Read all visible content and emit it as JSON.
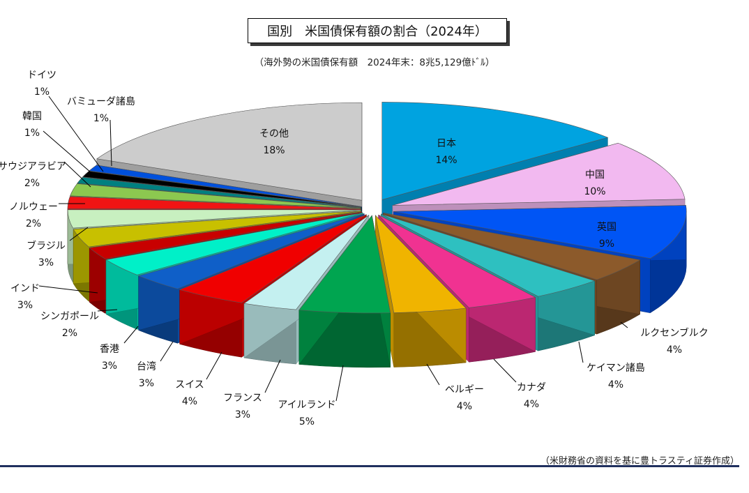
{
  "title": "国別　米国債保有額の割合（2024年）",
  "subtitle": "（海外勢の米国債保有額　2024年末：8兆5,129億ﾄﾞﾙ）",
  "source": "（米財務省の資料を基に豊トラスティ証券作成）",
  "chart_data": {
    "type": "pie",
    "unit": "%",
    "slices": [
      {
        "label": "日本",
        "value": 14,
        "display": "14%",
        "color": "#00A3E0"
      },
      {
        "label": "中国",
        "value": 10,
        "display": "10%",
        "color": "#F2B9F0"
      },
      {
        "label": "英国",
        "value": 9,
        "display": "9%",
        "color": "#0055F5"
      },
      {
        "label": "ルクセンブルク",
        "value": 4,
        "display": "4%",
        "color": "#8C5A2B"
      },
      {
        "label": "ケイマン諸島",
        "value": 4,
        "display": "4%",
        "color": "#2EC0C0"
      },
      {
        "label": "カナダ",
        "value": 4,
        "display": "4%",
        "color": "#F03291"
      },
      {
        "label": "ベルギー",
        "value": 4,
        "display": "4%",
        "color": "#F0B400"
      },
      {
        "label": "アイルランド",
        "value": 5,
        "display": "5%",
        "color": "#00A550"
      },
      {
        "label": "フランス",
        "value": 3,
        "display": "3%",
        "color": "#C4F0F0"
      },
      {
        "label": "スイス",
        "value": 4,
        "display": "4%",
        "color": "#F00000"
      },
      {
        "label": "台湾",
        "value": 3,
        "display": "3%",
        "color": "#0F5FC8"
      },
      {
        "label": "香港",
        "value": 3,
        "display": "3%",
        "color": "#00F0C8"
      },
      {
        "label": "シンガポール",
        "value": 2,
        "display": "2%",
        "color": "#C80000"
      },
      {
        "label": "インド",
        "value": 3,
        "display": "3%",
        "color": "#C8C000"
      },
      {
        "label": "ブラジル",
        "value": 3,
        "display": "3%",
        "color": "#C8F0C0"
      },
      {
        "label": "ノルウェー",
        "value": 2,
        "display": "2%",
        "color": "#F01414"
      },
      {
        "label": "サウジアラビア",
        "value": 2,
        "display": "2%",
        "color": "#8CC850"
      },
      {
        "label": "韓国",
        "value": 1,
        "display": "1%",
        "color": "#008080"
      },
      {
        "label": "ドイツ",
        "value": 1,
        "display": "1%",
        "color": "#000000"
      },
      {
        "label": "バミューダ諸島",
        "value": 1,
        "display": "1%",
        "color": "#0050DC"
      },
      {
        "label": "その他",
        "value": 18,
        "display": "18%",
        "color": "#CCCCCC"
      }
    ]
  }
}
